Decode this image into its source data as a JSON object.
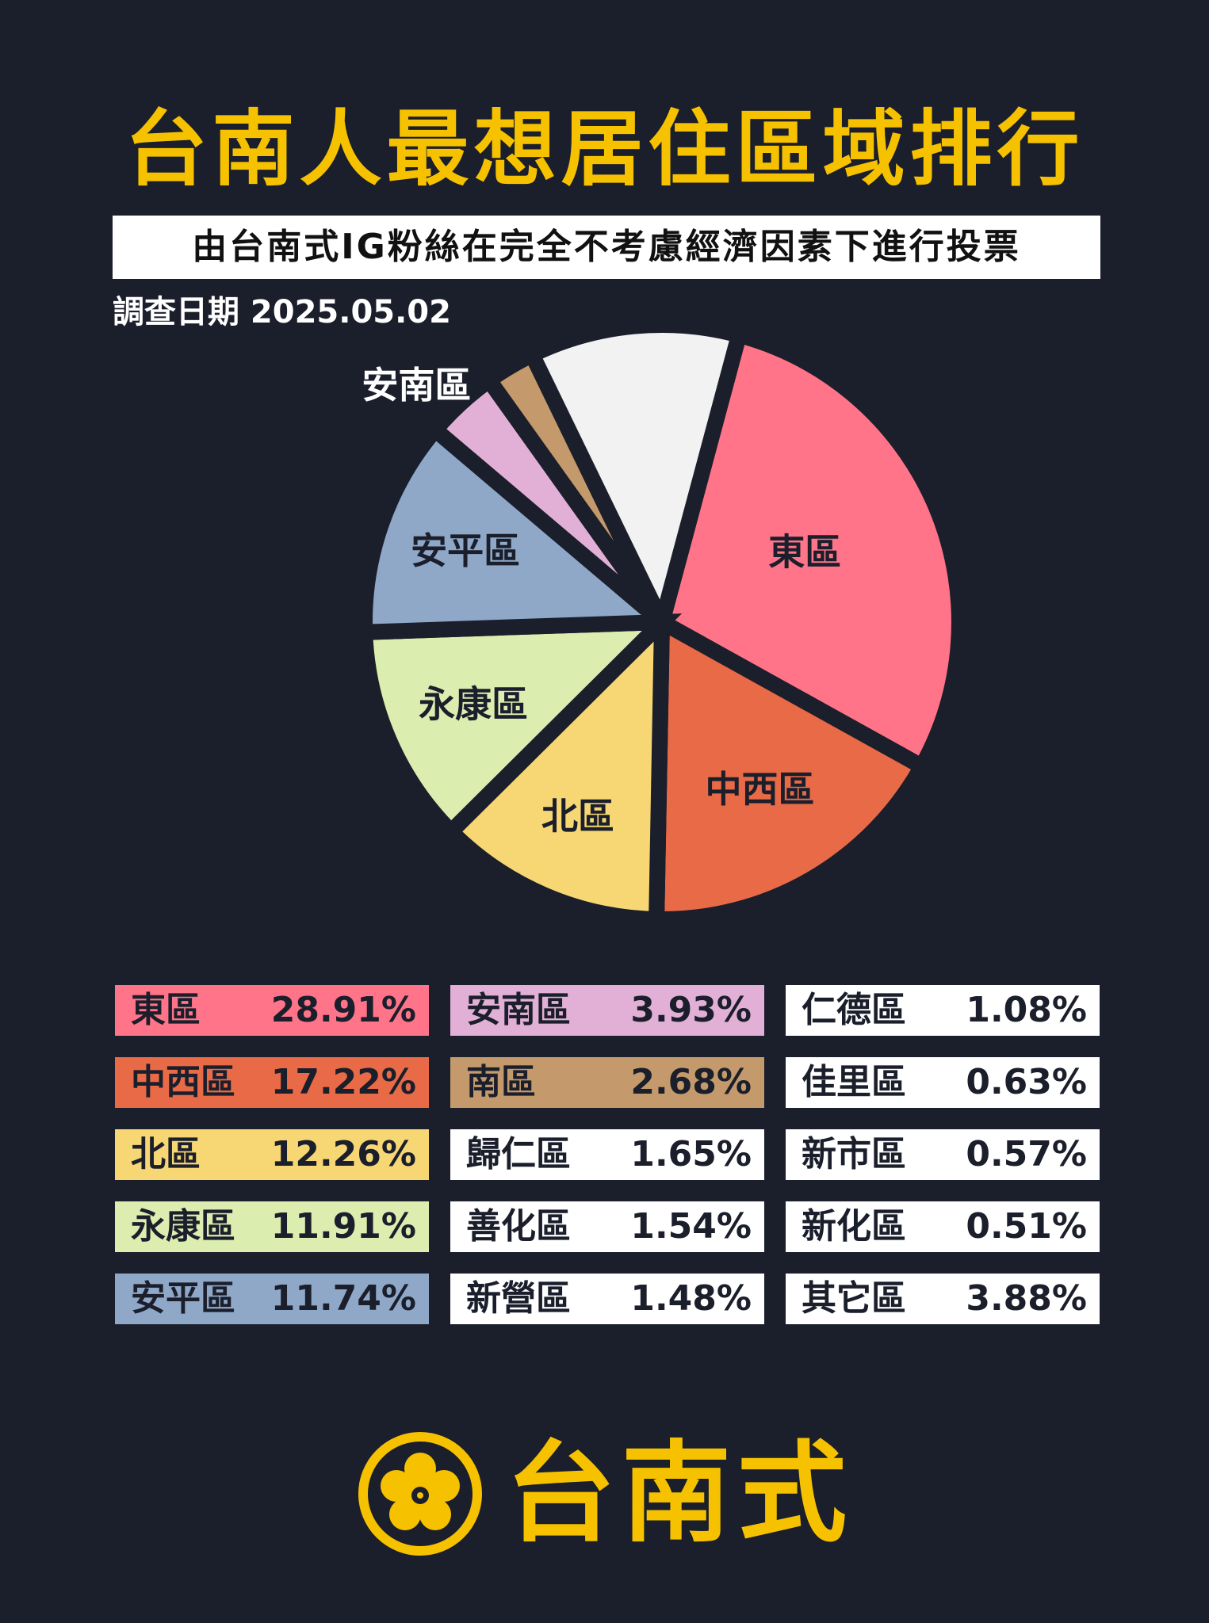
{
  "header": {
    "title": "台南人最想居住區域排行",
    "subtitle": "由台南式IG粉絲在完全不考慮經濟因素下進行投票",
    "survey_date": "調查日期 2025.05.02"
  },
  "chart_data": {
    "type": "pie",
    "title": "台南人最想居住區域排行",
    "unit": "%",
    "pie_slices": [
      {
        "label": "東區",
        "value": 28.91,
        "color": "#ff7488",
        "text_color": "#1b1e2b"
      },
      {
        "label": "中西區",
        "value": 17.22,
        "color": "#e86a47",
        "text_color": "#1b1e2b"
      },
      {
        "label": "北區",
        "value": 12.26,
        "color": "#f7d774",
        "text_color": "#1b1e2b"
      },
      {
        "label": "永康區",
        "value": 11.91,
        "color": "#dcedb0",
        "text_color": "#1b1e2b"
      },
      {
        "label": "安平區",
        "value": 11.74,
        "color": "#8fa8c8",
        "text_color": "#1b1e2b"
      },
      {
        "label": "安南區",
        "value": 3.93,
        "color": "#e2b0d6",
        "text_color": "#ffffff"
      },
      {
        "label": "南區",
        "value": 2.68,
        "color": "#c49a6c",
        "text_color": "#ffffff"
      },
      {
        "label": "其它區",
        "value": 11.36,
        "color": "#f2f2f2",
        "text_color": "#ffffff"
      }
    ],
    "legend": [
      {
        "label": "東區",
        "value": "28.91%",
        "color": "#ff7488"
      },
      {
        "label": "中西區",
        "value": "17.22%",
        "color": "#e86a47"
      },
      {
        "label": "北區",
        "value": "12.26%",
        "color": "#f7d774"
      },
      {
        "label": "永康區",
        "value": "11.91%",
        "color": "#dcedb0"
      },
      {
        "label": "安平區",
        "value": "11.74%",
        "color": "#8fa8c8"
      },
      {
        "label": "安南區",
        "value": "3.93%",
        "color": "#e2b0d6"
      },
      {
        "label": "南區",
        "value": "2.68%",
        "color": "#c49a6c"
      },
      {
        "label": "歸仁區",
        "value": "1.65%",
        "color": "#ffffff"
      },
      {
        "label": "善化區",
        "value": "1.54%",
        "color": "#ffffff"
      },
      {
        "label": "新營區",
        "value": "1.48%",
        "color": "#ffffff"
      },
      {
        "label": "仁德區",
        "value": "1.08%",
        "color": "#ffffff"
      },
      {
        "label": "佳里區",
        "value": "0.63%",
        "color": "#ffffff"
      },
      {
        "label": "新市區",
        "value": "0.57%",
        "color": "#ffffff"
      },
      {
        "label": "新化區",
        "value": "0.51%",
        "color": "#ffffff"
      },
      {
        "label": "其它區",
        "value": "3.88%",
        "color": "#ffffff"
      }
    ]
  },
  "footer": {
    "brand": "台南式",
    "brand_color": "#f6c200",
    "logo_icon": "plum-blossom-icon"
  }
}
